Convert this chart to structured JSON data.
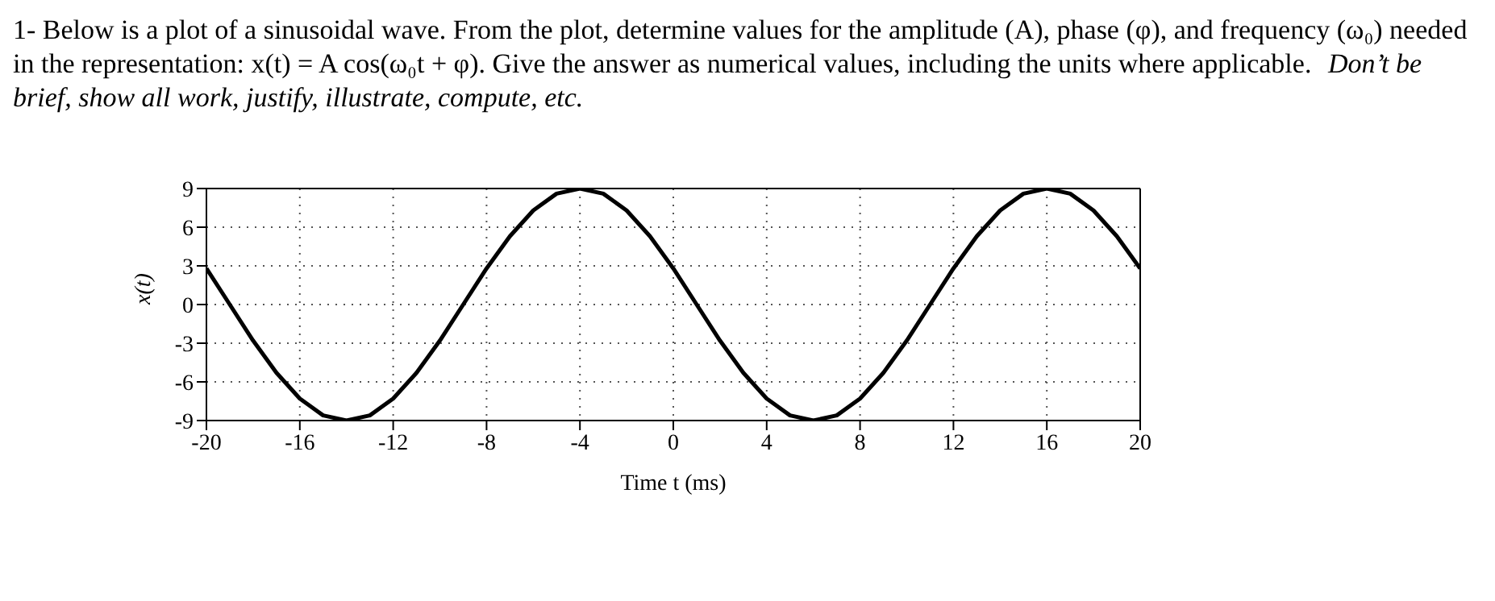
{
  "chart_data": {
    "type": "line",
    "title": "1- Below is a plot of a sinusoidal wave. From the plot, determine values for the amplitude (A), phase (φ), and frequency (ω₀) needed in the representation: x(t) = A cos(ω₀t + φ). Give the answer as numerical values, including the units where applicable.",
    "subtitle": "Don’t be brief, show all work, justify, illustrate, compute, etc.",
    "xlabel": "Time t (ms)",
    "ylabel": "x(t)",
    "x": [
      -20,
      -19,
      -18,
      -17,
      -16,
      -15,
      -14,
      -13,
      -12,
      -11,
      -10,
      -9,
      -8,
      -7,
      -6,
      -5,
      -4,
      -3,
      -2,
      -1,
      0,
      1,
      2,
      3,
      4,
      5,
      6,
      7,
      8,
      9,
      10,
      11,
      12,
      13,
      14,
      15,
      16,
      17,
      18,
      19,
      20
    ],
    "series": [
      {
        "color": "#000000",
        "values": [
          2.8,
          0,
          -2.8,
          -5.3,
          -7.3,
          -8.6,
          -9,
          -8.6,
          -7.3,
          -5.3,
          -2.8,
          0,
          2.8,
          5.3,
          7.3,
          8.6,
          9,
          8.6,
          7.3,
          5.3,
          2.8,
          0,
          -2.8,
          -5.3,
          -7.3,
          -8.6,
          -9,
          -8.6,
          -7.3,
          -5.3,
          -2.8,
          0,
          2.8,
          5.3,
          7.3,
          8.6,
          9,
          8.6,
          7.3,
          5.3,
          2.8
        ]
      }
    ],
    "xlim": [
      -20,
      20
    ],
    "xticks": [
      -20,
      -16,
      -12,
      -8,
      -4,
      0,
      4,
      8,
      12,
      16,
      20
    ],
    "ylim": [
      -9,
      9
    ],
    "yticks": [
      -9,
      -6,
      -3,
      0,
      3,
      6,
      9
    ],
    "grid": true,
    "marker": "none",
    "line_style": "solid",
    "legend": false
  }
}
